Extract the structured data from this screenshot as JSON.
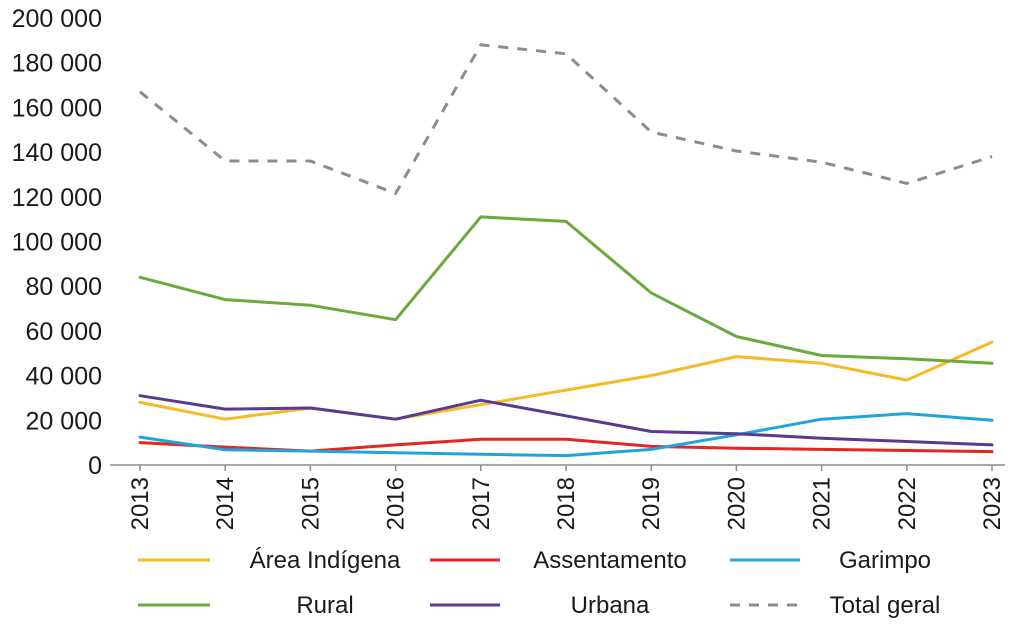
{
  "chart_data": {
    "type": "line",
    "title": "",
    "xlabel": "",
    "ylabel": "",
    "x": [
      "2013",
      "2014",
      "2015",
      "2016",
      "2017",
      "2018",
      "2019",
      "2020",
      "2021",
      "2022",
      "2023"
    ],
    "ylim": [
      0,
      200000
    ],
    "yticks": [
      0,
      20000,
      40000,
      60000,
      80000,
      100000,
      120000,
      140000,
      160000,
      180000,
      200000
    ],
    "ytick_labels": [
      "0",
      "20 000",
      "40 000",
      "60 000",
      "80 000",
      "100 000",
      "120 000",
      "140 000",
      "160 000",
      "180 000",
      "200 000"
    ],
    "grid": false,
    "legend_position": "bottom",
    "series": [
      {
        "name": "Área Indígena",
        "color": "#f7b928",
        "dash": false,
        "values": [
          28000,
          20500,
          25500,
          20500,
          27000,
          33500,
          40000,
          48500,
          45500,
          38000,
          55000
        ]
      },
      {
        "name": "Assentamento",
        "color": "#e52521",
        "dash": false,
        "values": [
          10000,
          8000,
          6200,
          9000,
          11500,
          11500,
          8300,
          7500,
          7000,
          6500,
          6000
        ]
      },
      {
        "name": "Garimpo",
        "color": "#1ea5dc",
        "dash": false,
        "values": [
          12500,
          6800,
          6200,
          5500,
          4800,
          4200,
          7000,
          13500,
          20500,
          23000,
          20000
        ]
      },
      {
        "name": "Rural",
        "color": "#6aaa3a",
        "dash": false,
        "values": [
          84000,
          74000,
          71500,
          65000,
          111000,
          109000,
          77000,
          57500,
          49000,
          47500,
          45500
        ]
      },
      {
        "name": "Urbana",
        "color": "#583b8f",
        "dash": false,
        "values": [
          31000,
          25000,
          25500,
          20500,
          29000,
          22000,
          15000,
          14000,
          12000,
          10500,
          9000
        ]
      },
      {
        "name": "Total geral",
        "color": "#8c8c8c",
        "dash": true,
        "values": [
          167000,
          136000,
          136000,
          121500,
          188000,
          184000,
          149000,
          140500,
          135500,
          126000,
          138000
        ]
      }
    ]
  }
}
